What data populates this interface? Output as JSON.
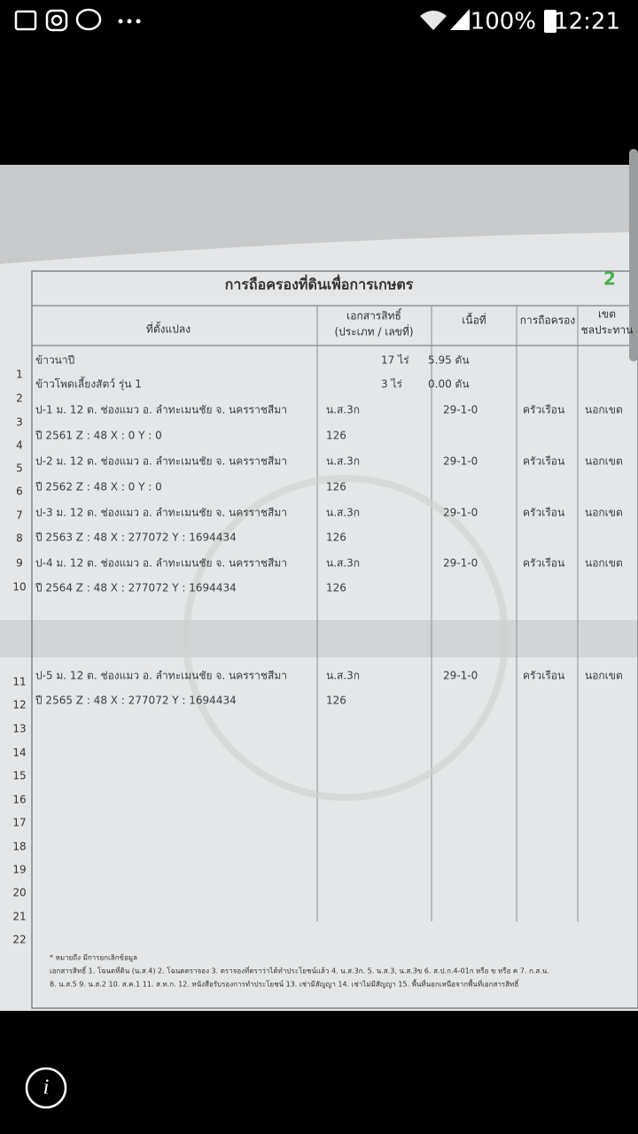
{
  "status_bar": {
    "battery": "100%",
    "time": "12:21"
  },
  "document": {
    "title": "การถือครองที่ดินเพื่อการเกษตร",
    "page_number": "2",
    "headers": {
      "location": "ที่ตั้งแปลง",
      "document_type": "เอกสารสิทธิ์",
      "document_type_sub": "(ประเภท / เลขที่)",
      "area": "เนื้อที่",
      "tenure": "การถือครอง",
      "irrigation": "เขต",
      "irrigation_sub": "ชลประทาน"
    },
    "row_numbers": [
      "1",
      "2",
      "3",
      "4",
      "5",
      "6",
      "7",
      "8",
      "9",
      "10",
      "11",
      "12",
      "13",
      "14",
      "15",
      "16",
      "17",
      "18",
      "19",
      "20",
      "21",
      "22"
    ],
    "rows": [
      {
        "location": "ข้าวนาปี",
        "document": "17 ไร่",
        "area": "5.95 ตัน"
      },
      {
        "location": "ข้าวโพดเลี้ยงสัตว์ รุ่น 1",
        "document": "3 ไร่",
        "area": "0.00 ตัน"
      },
      {
        "location": "ป-1 ม. 12 ต. ช่องแมว อ. ลำทะเมนชัย จ. นครราชสีมา",
        "document": "น.ส.3ก",
        "area": "29-1-0",
        "tenure": "ครัวเรือน",
        "irrigation": "นอกเขต"
      },
      {
        "location": "ปี 2561 Z : 48 X : 0 Y : 0",
        "document": "126"
      },
      {
        "location": "ป-2 ม. 12 ต. ช่องแมว อ. ลำทะเมนชัย จ. นครราชสีมา",
        "document": "น.ส.3ก",
        "area": "29-1-0",
        "tenure": "ครัวเรือน",
        "irrigation": "นอกเขต"
      },
      {
        "location": "ปี 2562 Z : 48 X : 0 Y : 0",
        "document": "126"
      },
      {
        "location": "ป-3 ม. 12 ต. ช่องแมว อ. ลำทะเมนชัย จ. นครราชสีมา",
        "document": "น.ส.3ก",
        "area": "29-1-0",
        "tenure": "ครัวเรือน",
        "irrigation": "นอกเขต"
      },
      {
        "location": "ปี 2563 Z : 48 X : 277072 Y : 1694434",
        "document": "126"
      },
      {
        "location": "ป-4 ม. 12 ต. ช่องแมว อ. ลำทะเมนชัย จ. นครราชสีมา",
        "document": "น.ส.3ก",
        "area": "29-1-0",
        "tenure": "ครัวเรือน",
        "irrigation": "นอกเขต"
      },
      {
        "location": "ปี 2564 Z : 48 X : 277072 Y : 1694434",
        "document": "126"
      },
      {
        "location": "ป-5 ม. 12 ต. ช่องแมว อ. ลำทะเมนชัย จ. นครราชสีมา",
        "document": "น.ส.3ก",
        "area": "29-1-0",
        "tenure": "ครัวเรือน",
        "irrigation": "นอกเขต"
      },
      {
        "location": "ปี 2565 Z : 48 X : 277072 Y : 1694434",
        "document": "126"
      }
    ],
    "footnote": "* หมายถึง มีการยกเลิกข้อมูล",
    "legend_line1": "เอกสารสิทธิ์ 1. โฉนดที่ดิน (น.ส.4) 2. โฉนดตราจอง 3. ตราจองที่ตราว่าได้ทำประโยชน์แล้ว 4. น.ส.3ก. 5. น.ส.3, น.ส.3ข 6. ส.ป.ก.4-01ก หรือ ข หรือ ค 7. ก.ส.น.",
    "legend_line2": "8. น.ส.5 9. น.ส.2 10. ส.ค.1 11. ส.ท.ก. 12. หนังสือรับรองการทำประโยชน์ 13. เช่ามีสัญญา 14. เช่าไม่มีสัญญา 15. พื้นที่นอกเหนือจากพื้นที่เอกสารสิทธิ์"
  }
}
